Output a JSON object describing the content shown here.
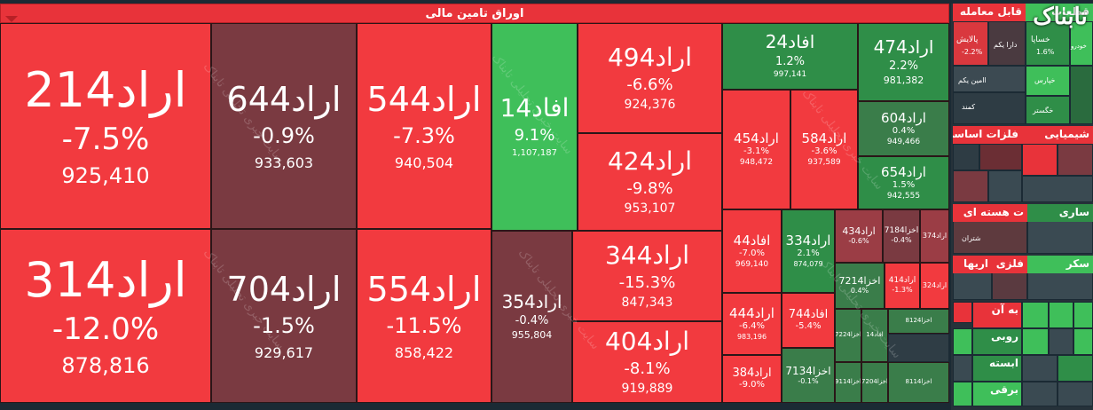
{
  "header": {
    "title": "اوراق تامین مالی"
  },
  "tiles": [
    {
      "name": "اراد214",
      "change": "-7.5%",
      "value": "925,410"
    },
    {
      "name": "اراد314",
      "change": "-12.0%",
      "value": "878,816"
    },
    {
      "name": "اراد644",
      "change": "-0.9%",
      "value": "933,603"
    },
    {
      "name": "اراد704",
      "change": "-1.5%",
      "value": "929,617"
    },
    {
      "name": "اراد544",
      "change": "-7.3%",
      "value": "940,504"
    },
    {
      "name": "اراد554",
      "change": "-11.5%",
      "value": "858,422"
    },
    {
      "name": "افاد14",
      "change": "9.1%",
      "value": "1,107,187"
    },
    {
      "name": "اراد354",
      "change": "-0.4%",
      "value": "955,804"
    },
    {
      "name": "اراد494",
      "change": "-6.6%",
      "value": "924,376"
    },
    {
      "name": "اراد424",
      "change": "-9.8%",
      "value": "953,107"
    },
    {
      "name": "اراد344",
      "change": "-15.3%",
      "value": "847,343"
    },
    {
      "name": "اراد404",
      "change": "-8.1%",
      "value": "919,889"
    },
    {
      "name": "افاد24",
      "change": "1.2%",
      "value": "997,141"
    },
    {
      "name": "اراد474",
      "change": "2.2%",
      "value": "981,382"
    },
    {
      "name": "اراد604",
      "change": "0.4%",
      "value": "949,466"
    },
    {
      "name": "اراد654",
      "change": "1.5%",
      "value": "942,555"
    },
    {
      "name": "اراد454",
      "change": "-3.1%",
      "value": "948,472"
    },
    {
      "name": "اراد584",
      "change": "-3.6%",
      "value": "937,589"
    },
    {
      "name": "افاد44",
      "change": "-7.0%",
      "value": "969,140"
    },
    {
      "name": "اراد334",
      "change": "2.1%",
      "value": "874,079"
    },
    {
      "name": "اراد434",
      "change": "-0.6%",
      "value": ""
    },
    {
      "name": "اخزا7184",
      "change": "-0.4%",
      "value": ""
    },
    {
      "name": "اراد374",
      "change": "",
      "value": ""
    },
    {
      "name": "اخزا7214",
      "change": "0.4%",
      "value": ""
    },
    {
      "name": "اراد414",
      "change": "-1.3%",
      "value": ""
    },
    {
      "name": "اراد324",
      "change": "",
      "value": ""
    },
    {
      "name": "اراد444",
      "change": "-6.4%",
      "value": "983,196"
    },
    {
      "name": "افاد744",
      "change": "-5.4%",
      "value": ""
    },
    {
      "name": "اخزا7224",
      "change": "",
      "value": ""
    },
    {
      "name": "افاد14",
      "change": "",
      "value": ""
    },
    {
      "name": "اخزا8124",
      "change": "",
      "value": ""
    },
    {
      "name": "اراد384",
      "change": "-9.0%",
      "value": ""
    },
    {
      "name": "اخزا7134",
      "change": "-0.1%",
      "value": ""
    },
    {
      "name": "اخزا9114",
      "change": "",
      "value": ""
    },
    {
      "name": "اخزا7204",
      "change": "",
      "value": ""
    },
    {
      "name": "اخزا8114",
      "change": "",
      "value": ""
    }
  ],
  "sidebar": {
    "sections": [
      "قابل معامله",
      "قطعات",
      "فلزات اساسی",
      "شیمیایی",
      "ت هسته ای",
      "ساری",
      "اریها",
      "فلزی",
      "سکر",
      "به آن",
      "روبی",
      "برقی",
      "ابسته"
    ],
    "mini_labels": [
      "پالایش",
      "دارا یکم",
      "اامین یکم",
      "کمند",
      "خساپا",
      "خودرو",
      "خپارس",
      "خگستر",
      "شتران"
    ],
    "mini_changes": [
      "-2.2%",
      "1.6%"
    ]
  },
  "watermark": "سایت خبری تحلیلی تابناک",
  "logo": "تابناک",
  "colors": {
    "red": "#f23a3f",
    "green": "#3fbf5a",
    "maroon": "#7a3a41",
    "darkgreen": "#2f8e48"
  }
}
